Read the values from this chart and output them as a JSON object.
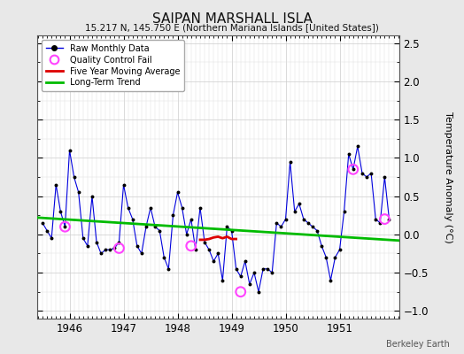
{
  "title": "SAIPAN MARSHALL ISLA",
  "subtitle": "15.217 N, 145.750 E (Northern Mariana Islands [United States])",
  "ylabel": "Temperature Anomaly (°C)",
  "attribution": "Berkeley Earth",
  "ylim": [
    -1.1,
    2.6
  ],
  "xlim": [
    1945.4,
    1952.1
  ],
  "yticks": [
    -1,
    -0.5,
    0,
    0.5,
    1,
    1.5,
    2,
    2.5
  ],
  "xticks": [
    1946,
    1947,
    1948,
    1949,
    1950,
    1951
  ],
  "bg_color": "#e8e8e8",
  "plot_bg_color": "#ffffff",
  "raw_line_color": "#0000dd",
  "raw_marker_color": "#000000",
  "qc_fail_color": "#ff44ff",
  "moving_avg_color": "#dd0000",
  "trend_color": "#00bb00",
  "monthly_x": [
    1945.5,
    1945.583,
    1945.667,
    1945.75,
    1945.833,
    1945.917,
    1946.0,
    1946.083,
    1946.167,
    1946.25,
    1946.333,
    1946.417,
    1946.5,
    1946.583,
    1946.667,
    1946.75,
    1946.833,
    1946.917,
    1947.0,
    1947.083,
    1947.167,
    1947.25,
    1947.333,
    1947.417,
    1947.5,
    1947.583,
    1947.667,
    1947.75,
    1947.833,
    1947.917,
    1948.0,
    1948.083,
    1948.167,
    1948.25,
    1948.333,
    1948.417,
    1948.5,
    1948.583,
    1948.667,
    1948.75,
    1948.833,
    1948.917,
    1949.0,
    1949.083,
    1949.167,
    1949.25,
    1949.333,
    1949.417,
    1949.5,
    1949.583,
    1949.667,
    1949.75,
    1949.833,
    1949.917,
    1950.0,
    1950.083,
    1950.167,
    1950.25,
    1950.333,
    1950.417,
    1950.5,
    1950.583,
    1950.667,
    1950.75,
    1950.833,
    1950.917,
    1951.0,
    1951.083,
    1951.167,
    1951.25,
    1951.333,
    1951.417,
    1951.5,
    1951.583,
    1951.667,
    1951.75,
    1951.833,
    1951.917
  ],
  "monthly_y": [
    0.15,
    0.05,
    -0.05,
    0.65,
    0.3,
    0.1,
    1.1,
    0.75,
    0.55,
    -0.05,
    -0.15,
    0.5,
    -0.1,
    -0.25,
    -0.2,
    -0.2,
    -0.18,
    -0.1,
    0.65,
    0.35,
    0.2,
    -0.15,
    -0.25,
    0.1,
    0.35,
    0.1,
    0.05,
    -0.3,
    -0.45,
    0.25,
    0.55,
    0.35,
    0.0,
    0.2,
    -0.2,
    0.35,
    -0.1,
    -0.2,
    -0.35,
    -0.25,
    -0.6,
    0.1,
    0.05,
    -0.45,
    -0.55,
    -0.35,
    -0.65,
    -0.5,
    -0.75,
    -0.45,
    -0.45,
    -0.5,
    0.15,
    0.1,
    0.2,
    0.95,
    0.3,
    0.4,
    0.2,
    0.15,
    0.1,
    0.05,
    -0.15,
    -0.3,
    -0.6,
    -0.3,
    -0.2,
    0.3,
    1.05,
    0.85,
    1.15,
    0.8,
    0.75,
    0.8,
    0.2,
    0.15,
    0.75,
    0.2
  ],
  "qc_fail_x": [
    1945.917,
    1946.917,
    1948.25,
    1949.167,
    1951.25,
    1951.833
  ],
  "qc_fail_y": [
    0.1,
    -0.18,
    -0.15,
    -0.75,
    0.85,
    0.2
  ],
  "moving_avg_x": [
    1948.417,
    1948.5,
    1948.583,
    1948.667,
    1948.75,
    1948.833,
    1948.917,
    1949.0,
    1949.083
  ],
  "moving_avg_y": [
    -0.07,
    -0.07,
    -0.06,
    -0.04,
    -0.03,
    -0.05,
    -0.03,
    -0.06,
    -0.06
  ],
  "trend_x": [
    1945.4,
    1952.1
  ],
  "trend_y": [
    0.22,
    -0.08
  ]
}
